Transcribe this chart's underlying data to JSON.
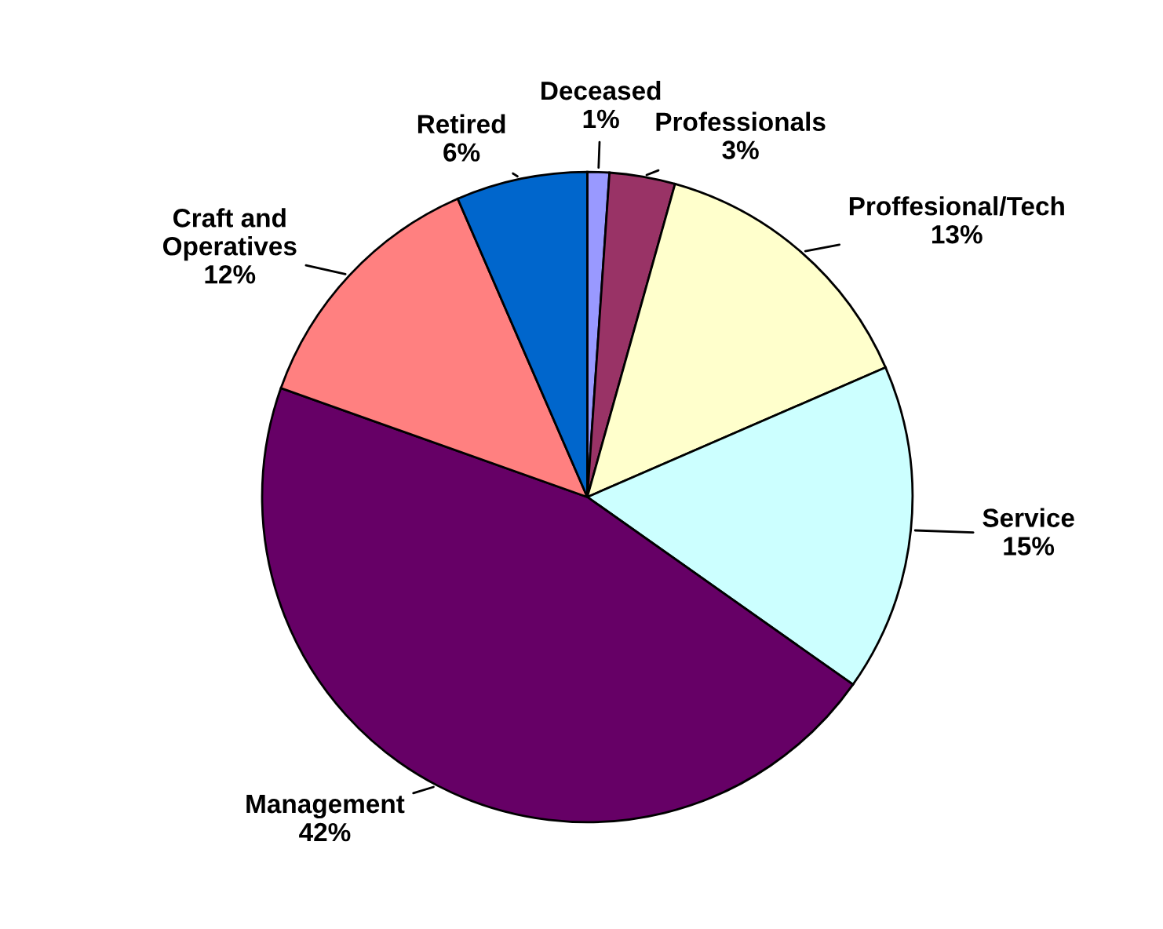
{
  "chart_data": {
    "type": "pie",
    "categories": [
      "Deceased",
      "Professionals",
      "Proffesional/Tech",
      "Service",
      "Management",
      "Craft and\nOperatives",
      "Retired"
    ],
    "values": [
      1,
      3,
      13,
      15,
      42,
      12,
      6
    ],
    "value_labels": [
      "1%",
      "3%",
      "13%",
      "15%",
      "42%",
      "12%",
      "6%"
    ],
    "colors": [
      "#9999ff",
      "#993366",
      "#ffffcc",
      "#ccffff",
      "#660066",
      "#ff8080",
      "#0066cc"
    ],
    "legend": false
  }
}
